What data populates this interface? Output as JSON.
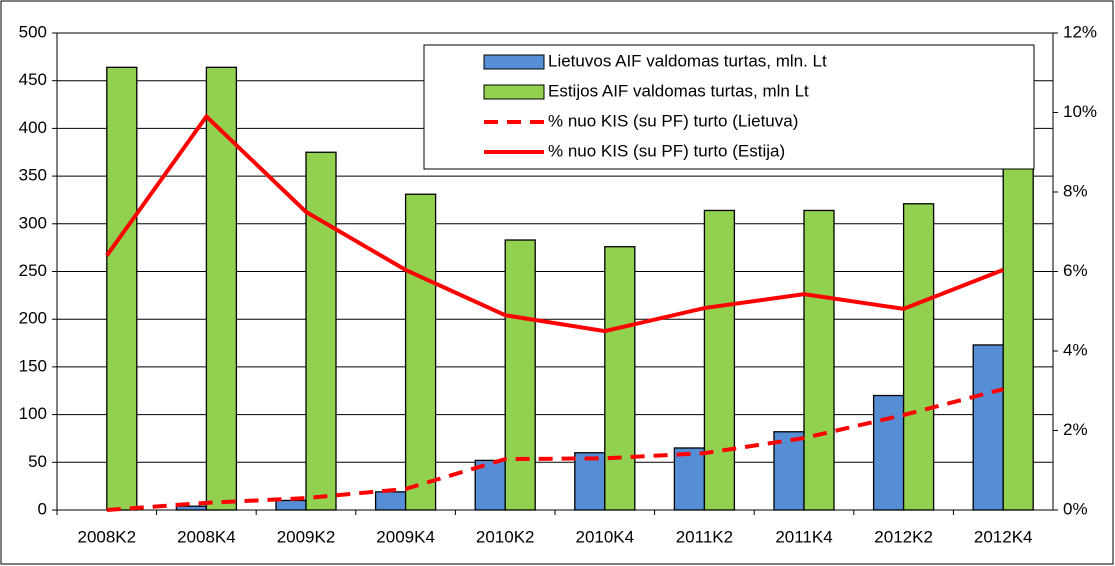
{
  "chart_data": {
    "type": "bar",
    "categories": [
      "2008K2",
      "2008K4",
      "2009K2",
      "2009K4",
      "2010K2",
      "2010K4",
      "2011K2",
      "2011K4",
      "2012K2",
      "2012K4"
    ],
    "series": [
      {
        "name": "Lietuvos AIF valdomas turtas, mln. Lt",
        "type": "bar",
        "color": "#558ed5",
        "values": [
          0,
          4,
          10,
          19,
          52,
          60,
          65,
          82,
          120,
          173
        ]
      },
      {
        "name": "Estijos AIF valdomas turtas, mln Lt",
        "type": "bar",
        "color": "#92d050",
        "values": [
          464,
          464,
          375,
          331,
          283,
          276,
          314,
          314,
          321,
          435
        ]
      },
      {
        "name": "% nuo KIS (su PF) turto (Lietuva)",
        "type": "line",
        "dashed": true,
        "axis": "y2",
        "color": "#ff0000",
        "values": [
          0,
          0.18,
          0.3,
          0.53,
          1.28,
          1.3,
          1.43,
          1.81,
          2.39,
          3.04
        ]
      },
      {
        "name": "% nuo KIS (su PF) turto (Estija)",
        "type": "line",
        "dashed": false,
        "axis": "y2",
        "color": "#ff0000",
        "values": [
          6.4,
          9.9,
          7.5,
          6.04,
          4.9,
          4.5,
          5.08,
          5.43,
          5.06,
          6.04
        ]
      }
    ],
    "ylim": [
      0,
      500
    ],
    "yticks": [
      0,
      50,
      100,
      150,
      200,
      250,
      300,
      350,
      400,
      450,
      500
    ],
    "y2lim": [
      0,
      12
    ],
    "y2ticks": [
      {
        "value": 0,
        "label": "0%"
      },
      {
        "value": 2,
        "label": "2%"
      },
      {
        "value": 4,
        "label": "4%"
      },
      {
        "value": 6,
        "label": "6%"
      },
      {
        "value": 8,
        "label": "8%"
      },
      {
        "value": 10,
        "label": "10%"
      },
      {
        "value": 12,
        "label": "12%"
      }
    ],
    "grid": true,
    "legend": "top-right"
  }
}
